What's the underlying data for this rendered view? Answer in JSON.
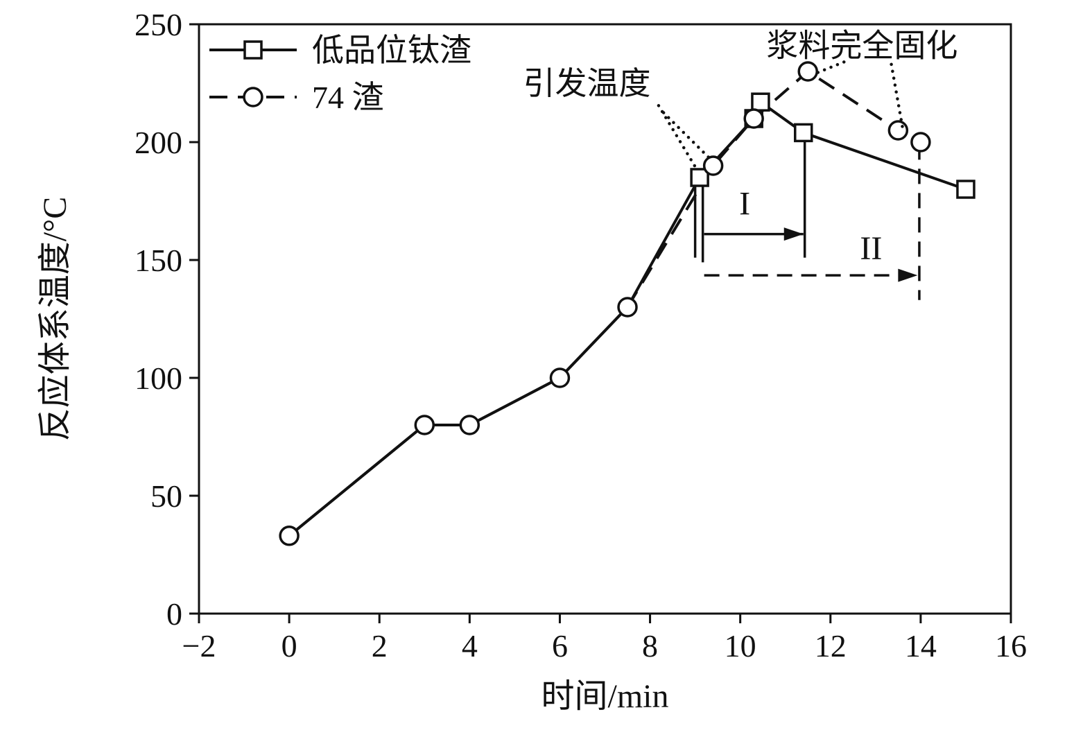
{
  "chart_data": {
    "type": "line",
    "title": "",
    "xlabel": "时间/min",
    "ylabel": "反应体系温度/°C",
    "xlim": [
      -2,
      16
    ],
    "ylim": [
      0,
      250
    ],
    "xtick_values": [
      -2,
      0,
      2,
      4,
      6,
      8,
      10,
      12,
      14,
      16
    ],
    "xtick_labels": [
      "−2",
      "0",
      "2",
      "4",
      "6",
      "8",
      "10",
      "12",
      "14",
      "16"
    ],
    "ytick_values": [
      0,
      50,
      100,
      150,
      200,
      250
    ],
    "ytick_labels": [
      "0",
      "50",
      "100",
      "150",
      "200",
      "250"
    ],
    "grid": false,
    "legend_position": "top-left-inside",
    "line_color": "#111111",
    "series": [
      {
        "name": "低品位钛渣",
        "marker": "square",
        "line": "solid",
        "marker_from_index": 5,
        "points": [
          [
            0,
            33
          ],
          [
            3,
            80
          ],
          [
            4,
            80
          ],
          [
            6,
            100
          ],
          [
            7.5,
            130
          ],
          [
            9.1,
            185
          ],
          [
            10.3,
            210
          ],
          [
            10.45,
            217
          ],
          [
            11.4,
            204
          ],
          [
            15,
            180
          ]
        ]
      },
      {
        "name": "74 渣",
        "marker": "circle",
        "line": "dashed",
        "dash_from_index": 4,
        "marker_from_index": 0,
        "points": [
          [
            0,
            33
          ],
          [
            3,
            80
          ],
          [
            4,
            80
          ],
          [
            6,
            100
          ],
          [
            7.5,
            130
          ],
          [
            9.4,
            190
          ],
          [
            10.3,
            210
          ],
          [
            11.5,
            230
          ],
          [
            13.5,
            205
          ],
          [
            14,
            200
          ]
        ]
      }
    ],
    "annotations": {
      "labels": [
        {
          "id": "initiation-temp-label",
          "text": "引发温度",
          "x": 6.6,
          "y": 225,
          "size": 46
        },
        {
          "id": "solidified-label",
          "text": "浆料完全固化",
          "x": 12.7,
          "y": 241,
          "size": 46
        },
        {
          "id": "stage-1-label",
          "text": "I",
          "x": 10.1,
          "y": 174,
          "size": 48
        },
        {
          "id": "stage-2-label",
          "text": "II",
          "x": 12.9,
          "y": 155,
          "size": 48
        }
      ],
      "dotted_pointers": [
        [
          [
            8.19,
            215.5
          ],
          [
            9.05,
            188
          ]
        ],
        [
          [
            8.3,
            212.5
          ],
          [
            9.38,
            192
          ]
        ],
        [
          [
            12.3,
            234
          ],
          [
            11.65,
            229
          ]
        ],
        [
          [
            13.35,
            233
          ],
          [
            13.6,
            206
          ]
        ]
      ],
      "solid_segments": [
        [
          [
            9.0,
            184
          ],
          [
            9.0,
            151
          ]
        ],
        [
          [
            9.17,
            186
          ],
          [
            9.17,
            149
          ]
        ],
        [
          [
            11.43,
            202
          ],
          [
            11.43,
            151
          ]
        ]
      ],
      "solid_arrows": [
        [
          [
            9.2,
            161
          ],
          [
            11.4,
            161
          ]
        ]
      ],
      "dashed_segments": [
        [
          [
            13.97,
            199
          ],
          [
            13.97,
            133
          ]
        ]
      ],
      "dashed_arrows": [
        [
          [
            9.2,
            143.5
          ],
          [
            13.93,
            143.5
          ]
        ]
      ]
    }
  }
}
